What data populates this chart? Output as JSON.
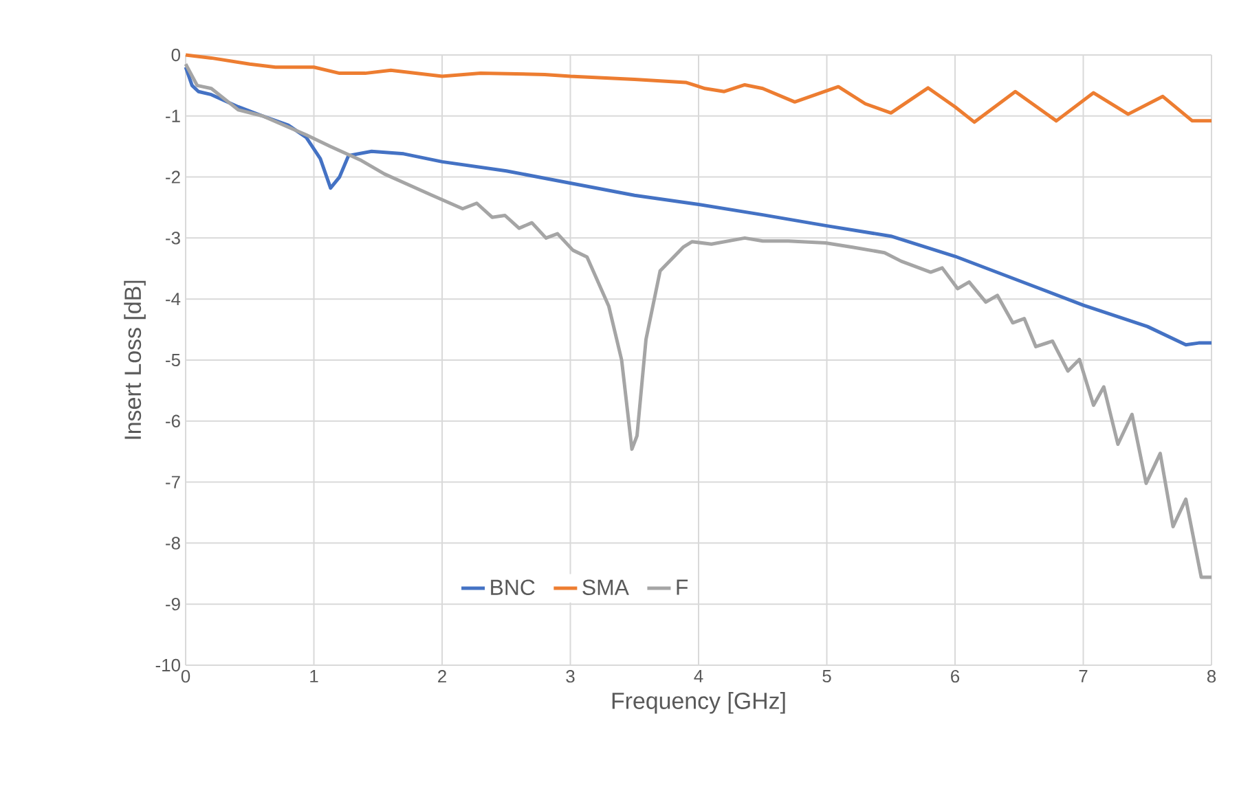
{
  "chart_data": {
    "type": "line",
    "xlabel": "Frequency [GHz]",
    "ylabel": "Insert Loss [dB]",
    "xlim": [
      0,
      8
    ],
    "ylim": [
      -10,
      0
    ],
    "xticks": [
      0,
      1,
      2,
      3,
      4,
      5,
      6,
      7,
      8
    ],
    "yticks": [
      0,
      -1,
      -2,
      -3,
      -4,
      -5,
      -6,
      -7,
      -8,
      -9,
      -10
    ],
    "grid": true,
    "legend": "bottom",
    "marker": "none",
    "line_style": "solid",
    "series": [
      {
        "name": "BNC",
        "color": "#4472c4",
        "x": [
          0,
          0.05,
          0.1,
          0.2,
          0.41,
          0.6,
          0.8,
          0.94,
          1.05,
          1.13,
          1.2,
          1.27,
          1.45,
          1.7,
          2.0,
          2.5,
          3.0,
          3.5,
          4.0,
          4.5,
          5.0,
          5.5,
          6.0,
          6.5,
          7.0,
          7.5,
          7.8,
          7.9,
          8.0
        ],
        "values": [
          -0.2,
          -0.5,
          -0.6,
          -0.65,
          -0.85,
          -1.0,
          -1.15,
          -1.35,
          -1.7,
          -2.18,
          -2.0,
          -1.65,
          -1.58,
          -1.62,
          -1.75,
          -1.9,
          -2.1,
          -2.3,
          -2.45,
          -2.62,
          -2.8,
          -2.97,
          -3.3,
          -3.7,
          -4.1,
          -4.45,
          -4.75,
          -4.72,
          -4.72
        ]
      },
      {
        "name": "SMA",
        "color": "#ed7d31",
        "x": [
          0,
          0.2,
          0.5,
          0.7,
          1.0,
          1.2,
          1.4,
          1.6,
          2.0,
          2.3,
          2.8,
          3.0,
          3.5,
          3.9,
          4.05,
          4.2,
          4.36,
          4.5,
          4.75,
          5.09,
          5.3,
          5.5,
          5.79,
          6.0,
          6.15,
          6.47,
          6.79,
          7.08,
          7.35,
          7.62,
          7.85,
          8.0
        ],
        "values": [
          0,
          -0.05,
          -0.15,
          -0.2,
          -0.2,
          -0.3,
          -0.3,
          -0.25,
          -0.35,
          -0.3,
          -0.32,
          -0.35,
          -0.4,
          -0.45,
          -0.55,
          -0.6,
          -0.49,
          -0.55,
          -0.77,
          -0.52,
          -0.8,
          -0.95,
          -0.54,
          -0.85,
          -1.1,
          -0.6,
          -1.08,
          -0.62,
          -0.97,
          -0.68,
          -1.08,
          -1.08
        ]
      },
      {
        "name": "F",
        "color": "#a5a5a5",
        "x": [
          0,
          0.09,
          0.2,
          0.41,
          0.6,
          0.94,
          1.13,
          1.37,
          1.55,
          1.73,
          1.91,
          2.16,
          2.27,
          2.39,
          2.49,
          2.6,
          2.7,
          2.81,
          2.9,
          3.02,
          3.13,
          3.3,
          3.4,
          3.48,
          3.52,
          3.59,
          3.7,
          3.88,
          3.95,
          4.1,
          4.36,
          4.5,
          4.7,
          4.99,
          5.2,
          5.45,
          5.58,
          5.81,
          5.9,
          6.02,
          6.11,
          6.24,
          6.33,
          6.45,
          6.54,
          6.63,
          6.76,
          6.88,
          6.97,
          7.08,
          7.16,
          7.27,
          7.38,
          7.49,
          7.6,
          7.7,
          7.8,
          7.92,
          8.0
        ],
        "values": [
          -0.15,
          -0.5,
          -0.55,
          -0.9,
          -1.0,
          -1.31,
          -1.5,
          -1.73,
          -1.95,
          -2.12,
          -2.29,
          -2.52,
          -2.43,
          -2.66,
          -2.63,
          -2.84,
          -2.75,
          -3.0,
          -2.93,
          -3.2,
          -3.31,
          -4.12,
          -5.0,
          -6.46,
          -6.24,
          -4.66,
          -3.54,
          -3.15,
          -3.06,
          -3.1,
          -3.0,
          -3.05,
          -3.05,
          -3.08,
          -3.15,
          -3.24,
          -3.38,
          -3.56,
          -3.49,
          -3.83,
          -3.72,
          -4.05,
          -3.94,
          -4.39,
          -4.32,
          -4.78,
          -4.69,
          -5.18,
          -4.99,
          -5.74,
          -5.44,
          -6.38,
          -5.89,
          -7.02,
          -6.53,
          -7.73,
          -7.28,
          -8.56,
          -8.56
        ]
      }
    ]
  }
}
